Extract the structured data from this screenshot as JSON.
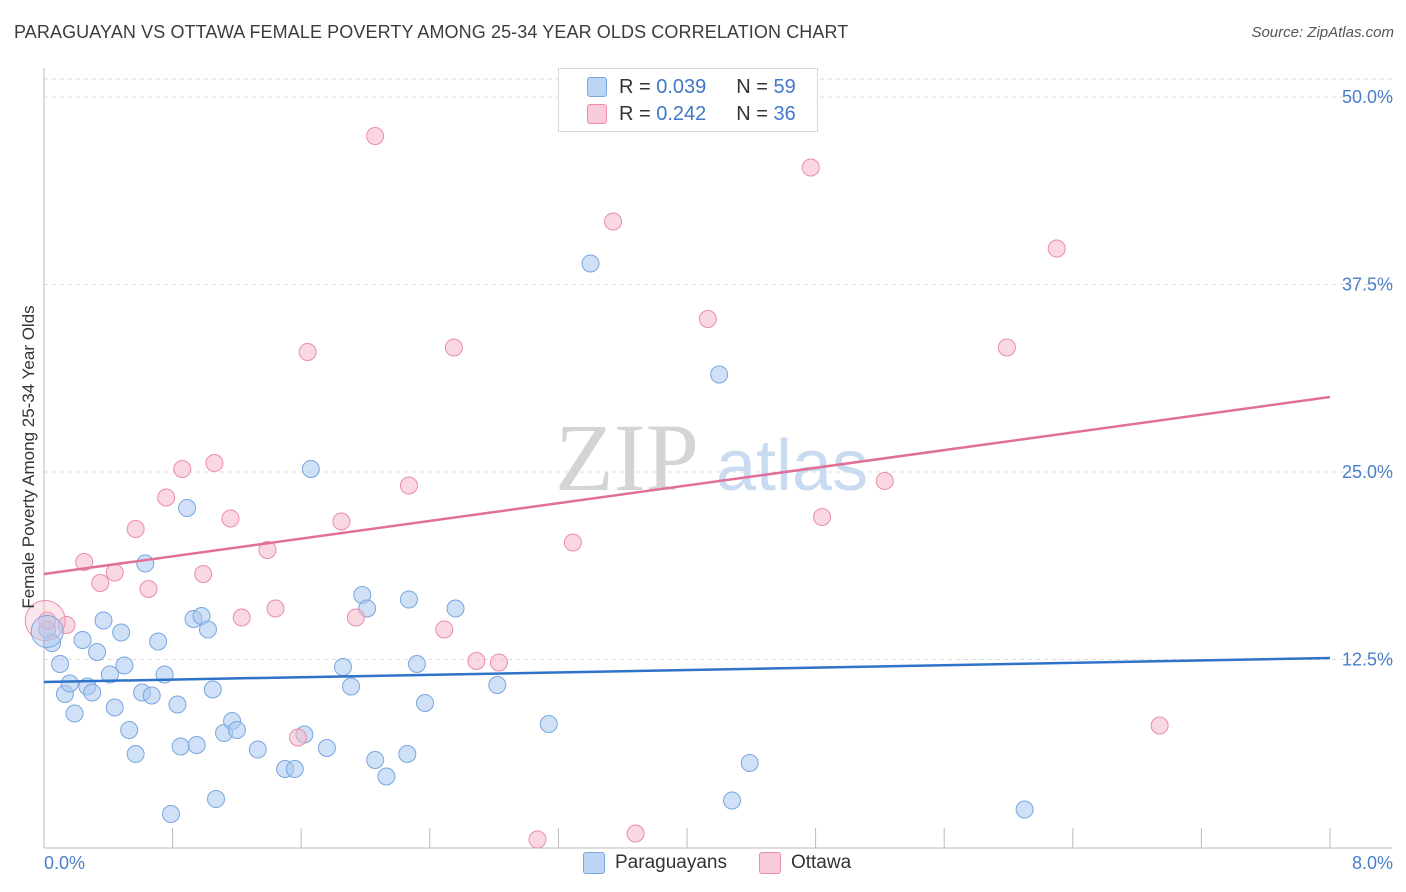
{
  "header": {
    "title": "PARAGUAYAN VS OTTAWA FEMALE POVERTY AMONG 25-34 YEAR OLDS CORRELATION CHART",
    "source": "Source: ZipAtlas.com"
  },
  "legend": {
    "rows": [
      {
        "r_label": "R =",
        "r_value": "0.039",
        "n_label": "N =",
        "n_value": "59",
        "color": "#a9c8f0"
      },
      {
        "r_label": "R =",
        "r_value": "0.242",
        "n_label": "N =",
        "n_value": "36",
        "color": "#f6b8cb"
      }
    ],
    "bottom": [
      {
        "label": "Paraguayans",
        "color": "#a9c8f0"
      },
      {
        "label": "Ottawa",
        "color": "#f6b8cb"
      }
    ]
  },
  "watermark": {
    "zip": "ZIP",
    "atlas": "atlas"
  },
  "chart_data": {
    "type": "scatter",
    "ylabel": "Female Poverty Among 25-34 Year Olds",
    "xlim": [
      0,
      8
    ],
    "ylim": [
      0,
      50
    ],
    "x_tick_labels": [
      "0.0%",
      "8.0%"
    ],
    "y_ticks": [
      12.5,
      25,
      37.5,
      50
    ],
    "y_tick_labels": [
      "12.5%",
      "25.0%",
      "37.5%",
      "50.0%"
    ],
    "grid": true,
    "series": [
      {
        "name": "Paraguayans",
        "color": "#a9c8f0",
        "stroke": "#7aa6de",
        "trend": {
          "color": "#2e72c9",
          "x": [
            0,
            8
          ],
          "y": [
            11.0,
            12.6
          ]
        },
        "points": [
          [
            0.02,
            14.5
          ],
          [
            0.05,
            13.6
          ],
          [
            0.1,
            12.2
          ],
          [
            0.13,
            10.2
          ],
          [
            0.16,
            10.9
          ],
          [
            0.19,
            8.9
          ],
          [
            0.24,
            13.8
          ],
          [
            0.27,
            10.7
          ],
          [
            0.3,
            10.3
          ],
          [
            0.33,
            13.0
          ],
          [
            0.37,
            15.1
          ],
          [
            0.41,
            11.5
          ],
          [
            0.44,
            9.3
          ],
          [
            0.48,
            14.3
          ],
          [
            0.5,
            12.1
          ],
          [
            0.53,
            7.8
          ],
          [
            0.57,
            6.2
          ],
          [
            0.61,
            10.3
          ],
          [
            0.63,
            18.9
          ],
          [
            0.67,
            10.1
          ],
          [
            0.71,
            13.7
          ],
          [
            0.75,
            11.5
          ],
          [
            0.79,
            2.2
          ],
          [
            0.83,
            9.5
          ],
          [
            0.85,
            6.7
          ],
          [
            0.89,
            22.6
          ],
          [
            0.93,
            15.2
          ],
          [
            0.95,
            6.8
          ],
          [
            0.98,
            15.4
          ],
          [
            1.02,
            14.5
          ],
          [
            1.05,
            10.5
          ],
          [
            1.07,
            3.2
          ],
          [
            1.12,
            7.6
          ],
          [
            1.17,
            8.4
          ],
          [
            1.2,
            7.8
          ],
          [
            1.33,
            6.5
          ],
          [
            1.5,
            5.2
          ],
          [
            1.56,
            5.2
          ],
          [
            1.62,
            7.5
          ],
          [
            1.66,
            25.2
          ],
          [
            1.76,
            6.6
          ],
          [
            1.86,
            12.0
          ],
          [
            1.91,
            10.7
          ],
          [
            1.98,
            16.8
          ],
          [
            2.01,
            15.9
          ],
          [
            2.06,
            5.8
          ],
          [
            2.13,
            4.7
          ],
          [
            2.26,
            6.2
          ],
          [
            2.27,
            16.5
          ],
          [
            2.32,
            12.2
          ],
          [
            2.37,
            9.6
          ],
          [
            2.56,
            15.9
          ],
          [
            2.82,
            10.8
          ],
          [
            3.14,
            8.2
          ],
          [
            3.4,
            38.9
          ],
          [
            4.2,
            31.5
          ],
          [
            4.28,
            3.1
          ],
          [
            4.39,
            5.6
          ],
          [
            6.1,
            2.5
          ]
        ]
      },
      {
        "name": "Ottawa",
        "color": "#f6b8cb",
        "stroke": "#ea8dab",
        "trend": {
          "color": "#e07097",
          "x": [
            0,
            8
          ],
          "y": [
            18.2,
            30.0
          ]
        },
        "points": [
          [
            0.02,
            15.1
          ],
          [
            0.14,
            14.8
          ],
          [
            0.25,
            19.0
          ],
          [
            0.35,
            17.6
          ],
          [
            0.44,
            18.3
          ],
          [
            0.57,
            21.2
          ],
          [
            0.65,
            17.2
          ],
          [
            0.76,
            23.3
          ],
          [
            0.86,
            25.2
          ],
          [
            0.99,
            18.2
          ],
          [
            1.06,
            25.6
          ],
          [
            1.16,
            21.9
          ],
          [
            1.23,
            15.3
          ],
          [
            1.39,
            19.8
          ],
          [
            1.44,
            15.9
          ],
          [
            1.58,
            7.3
          ],
          [
            1.64,
            33.0
          ],
          [
            1.85,
            21.7
          ],
          [
            1.94,
            15.3
          ],
          [
            2.06,
            47.4
          ],
          [
            2.27,
            24.1
          ],
          [
            2.49,
            14.5
          ],
          [
            2.55,
            33.3
          ],
          [
            2.69,
            12.4
          ],
          [
            2.83,
            12.3
          ],
          [
            3.07,
            0.5
          ],
          [
            3.29,
            20.3
          ],
          [
            3.54,
            41.7
          ],
          [
            3.68,
            0.9
          ],
          [
            4.13,
            35.2
          ],
          [
            4.77,
            45.3
          ],
          [
            4.84,
            22.0
          ],
          [
            5.23,
            24.4
          ],
          [
            5.99,
            33.3
          ],
          [
            6.3,
            39.9
          ],
          [
            6.94,
            8.1
          ]
        ]
      }
    ]
  }
}
